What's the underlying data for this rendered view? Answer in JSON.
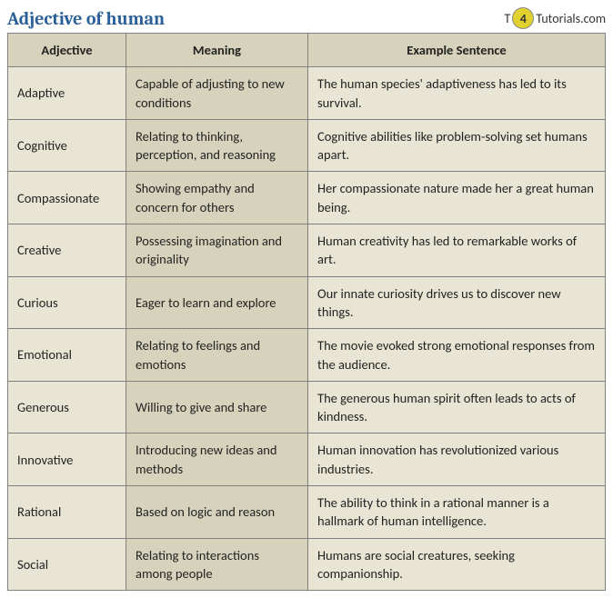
{
  "title": "Adjective of human",
  "logo": {
    "prefix": "T",
    "badge": "4",
    "suffix": "Tutorials.com"
  },
  "table": {
    "columns": [
      "Adjective",
      "Meaning",
      "Example Sentence"
    ],
    "rows": [
      {
        "adj": "Adaptive",
        "meaning": "Capable of adjusting to new conditions",
        "example": "The human species' adaptiveness has led to its survival."
      },
      {
        "adj": "Cognitive",
        "meaning": "Relating to thinking, perception, and reasoning",
        "example": "Cognitive abilities like problem-solving set humans apart."
      },
      {
        "adj": "Compassionate",
        "meaning": "Showing empathy and concern for others",
        "example": "Her compassionate nature made her a great human being."
      },
      {
        "adj": "Creative",
        "meaning": "Possessing imagination and originality",
        "example": "Human creativity has led to remarkable works of art."
      },
      {
        "adj": "Curious",
        "meaning": "Eager to learn and explore",
        "example": "Our innate curiosity drives us to discover new things."
      },
      {
        "adj": "Emotional",
        "meaning": "Relating to feelings and emotions",
        "example": "The movie evoked strong emotional responses from the audience."
      },
      {
        "adj": "Generous",
        "meaning": "Willing to give and share",
        "example": "The generous human spirit often leads to acts of kindness."
      },
      {
        "adj": "Innovative",
        "meaning": "Introducing new ideas and methods",
        "example": "Human innovation has revolutionized various industries."
      },
      {
        "adj": "Rational",
        "meaning": "Based on logic and reason",
        "example": "The ability to think in a rational manner is a hallmark of human intelligence."
      },
      {
        "adj": "Social",
        "meaning": "Relating to interactions among people",
        "example": "Humans are social creatures, seeking companionship."
      }
    ],
    "header_bg": "#d6d2bc",
    "col_adj_bg": "#e8e5d4",
    "col_mean_bg": "#d6d2bc",
    "col_ex_bg": "#e8e5d4",
    "border_color": "#808080",
    "title_color": "#2a6099",
    "font_size": 14.5
  }
}
